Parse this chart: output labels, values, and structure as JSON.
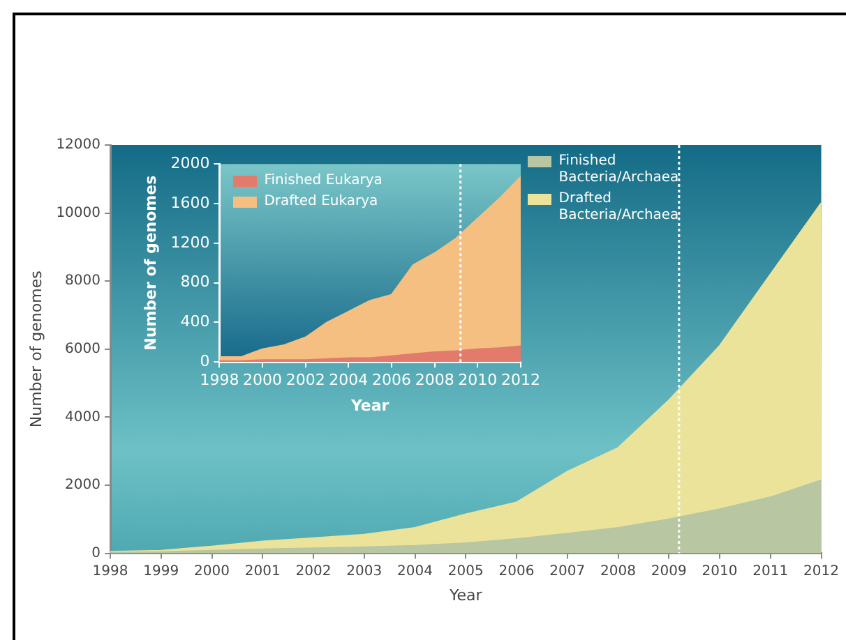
{
  "chart_data": [
    {
      "type": "area",
      "xlabel": "Year",
      "ylabel": "Number of genomes",
      "stacked": true,
      "x": [
        1998,
        1999,
        2000,
        2001,
        2002,
        2003,
        2004,
        2005,
        2006,
        2007,
        2008,
        2009,
        2010,
        2011,
        2012
      ],
      "series": [
        {
          "name": "Finished Bacteria/Archaea",
          "color": "#b8c6a2",
          "values": [
            20,
            40,
            80,
            120,
            150,
            180,
            220,
            300,
            420,
            580,
            750,
            1000,
            1300,
            1650,
            2150
          ]
        },
        {
          "name": "Drafted Bacteria/Archaea",
          "color": "#ece39b",
          "values": [
            30,
            40,
            120,
            230,
            300,
            370,
            530,
            850,
            1080,
            1820,
            2350,
            3500,
            4800,
            6550,
            8150
          ]
        }
      ],
      "xlim": [
        1998,
        2012
      ],
      "xticks": [
        1998,
        1999,
        2000,
        2001,
        2002,
        2003,
        2004,
        2005,
        2006,
        2007,
        2008,
        2009,
        2010,
        2011,
        2012
      ],
      "ylim": [
        0,
        12000
      ],
      "yticks": [
        0,
        2000,
        4000,
        6000,
        8000,
        10000,
        12000
      ],
      "ref_lines": [
        {
          "axis": "x",
          "value": 2009.2,
          "color": "#ffffff",
          "line_style": "dotted"
        }
      ],
      "legend": "top right",
      "grid": false,
      "marker": "none"
    },
    {
      "type": "area",
      "xlabel": "Year",
      "ylabel": "Number of genomes",
      "stacked": true,
      "x": [
        1998,
        1999,
        2000,
        2001,
        2002,
        2003,
        2004,
        2005,
        2006,
        2007,
        2008,
        2009,
        2010,
        2011,
        2012
      ],
      "series": [
        {
          "name": "Finished Eukarya",
          "color": "#e27b6c",
          "values": [
            10,
            10,
            20,
            20,
            20,
            30,
            40,
            40,
            60,
            80,
            100,
            110,
            130,
            140,
            160
          ]
        },
        {
          "name": "Drafted Eukarya",
          "color": "#f4bf80",
          "values": [
            40,
            40,
            110,
            150,
            230,
            370,
            470,
            580,
            620,
            900,
            1000,
            1140,
            1320,
            1510,
            1710
          ]
        }
      ],
      "xlim": [
        1998,
        2012
      ],
      "xticks": [
        1998,
        2000,
        2002,
        2004,
        2006,
        2008,
        2010,
        2012
      ],
      "ylim": [
        0,
        2000
      ],
      "yticks": [
        0,
        400,
        800,
        1200,
        1600,
        2000
      ],
      "ref_lines": [
        {
          "axis": "x",
          "value": 2009.2,
          "color": "#ffffff",
          "line_style": "dotted"
        }
      ],
      "legend": "top left",
      "grid": false,
      "marker": "none"
    }
  ]
}
